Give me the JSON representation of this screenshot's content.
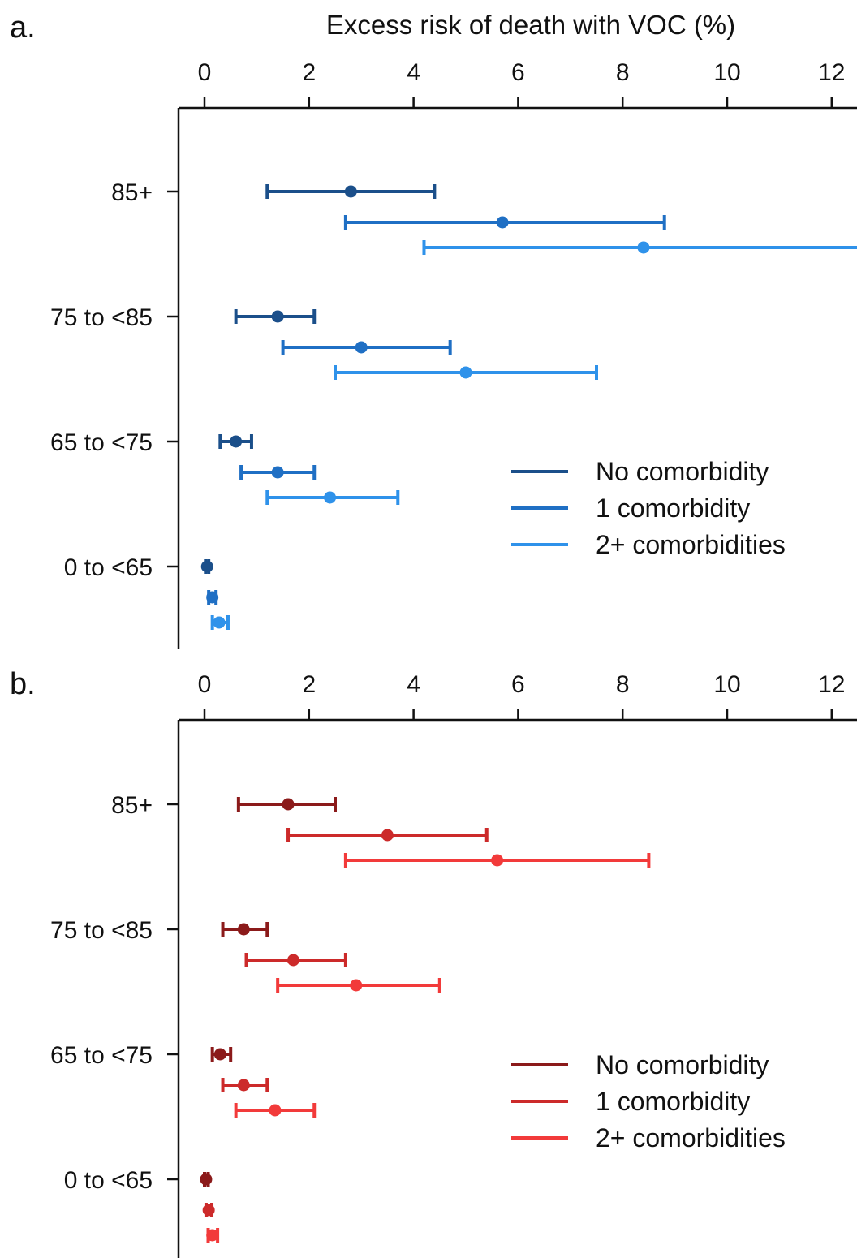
{
  "chart_data": [
    {
      "type": "errorbar",
      "panel_label": "a.",
      "title": "Excess risk of death with VOC (%)",
      "x_ticks": [
        0,
        2,
        4,
        6,
        8,
        10,
        12
      ],
      "xlim": [
        0,
        12.5
      ],
      "categories": [
        "85+",
        "75 to <85",
        "65 to <75",
        "0 to <65"
      ],
      "legend_position": "right",
      "series": [
        {
          "name": "No comorbidity",
          "color": "#1b4f8a",
          "values": [
            {
              "category": "85+",
              "x": 2.8,
              "lo": 1.2,
              "hi": 4.4
            },
            {
              "category": "75 to <85",
              "x": 1.4,
              "lo": 0.6,
              "hi": 2.1
            },
            {
              "category": "65 to <75",
              "x": 0.6,
              "lo": 0.3,
              "hi": 0.9
            },
            {
              "category": "0 to <65",
              "x": 0.05,
              "lo": 0.02,
              "hi": 0.08
            }
          ]
        },
        {
          "name": "1 comorbidity",
          "color": "#1f6fc4",
          "values": [
            {
              "category": "85+",
              "x": 5.7,
              "lo": 2.7,
              "hi": 8.8
            },
            {
              "category": "75 to <85",
              "x": 3.0,
              "lo": 1.5,
              "hi": 4.7
            },
            {
              "category": "65 to <75",
              "x": 1.4,
              "lo": 0.7,
              "hi": 2.1
            },
            {
              "category": "0 to <65",
              "x": 0.15,
              "lo": 0.08,
              "hi": 0.22
            }
          ]
        },
        {
          "name": "2+ comorbidities",
          "color": "#2f92ea",
          "values": [
            {
              "category": "85+",
              "x": 8.4,
              "lo": 4.2,
              "hi": 12.8
            },
            {
              "category": "75 to <85",
              "x": 5.0,
              "lo": 2.5,
              "hi": 7.5
            },
            {
              "category": "65 to <75",
              "x": 2.4,
              "lo": 1.2,
              "hi": 3.7
            },
            {
              "category": "0 to <65",
              "x": 0.28,
              "lo": 0.15,
              "hi": 0.45
            }
          ]
        }
      ]
    },
    {
      "type": "errorbar",
      "panel_label": "b.",
      "title": "",
      "x_ticks": [
        0,
        2,
        4,
        6,
        8,
        10,
        12
      ],
      "xlim": [
        0,
        12.5
      ],
      "categories": [
        "85+",
        "75 to <85",
        "65 to <75",
        "0 to <65"
      ],
      "legend_position": "right",
      "series": [
        {
          "name": "No comorbidity",
          "color": "#8b1a1a",
          "values": [
            {
              "category": "85+",
              "x": 1.6,
              "lo": 0.65,
              "hi": 2.5
            },
            {
              "category": "75 to <85",
              "x": 0.75,
              "lo": 0.35,
              "hi": 1.2
            },
            {
              "category": "65 to <75",
              "x": 0.3,
              "lo": 0.15,
              "hi": 0.5
            },
            {
              "category": "0 to <65",
              "x": 0.03,
              "lo": 0.0,
              "hi": 0.07
            }
          ]
        },
        {
          "name": "1 comorbidity",
          "color": "#cc2a2a",
          "values": [
            {
              "category": "85+",
              "x": 3.5,
              "lo": 1.6,
              "hi": 5.4
            },
            {
              "category": "75 to <85",
              "x": 1.7,
              "lo": 0.8,
              "hi": 2.7
            },
            {
              "category": "65 to <75",
              "x": 0.75,
              "lo": 0.35,
              "hi": 1.2
            },
            {
              "category": "0 to <65",
              "x": 0.08,
              "lo": 0.03,
              "hi": 0.14
            }
          ]
        },
        {
          "name": "2+ comorbidities",
          "color": "#f23a3a",
          "values": [
            {
              "category": "85+",
              "x": 5.6,
              "lo": 2.7,
              "hi": 8.5
            },
            {
              "category": "75 to <85",
              "x": 2.9,
              "lo": 1.4,
              "hi": 4.5
            },
            {
              "category": "65 to <75",
              "x": 1.35,
              "lo": 0.6,
              "hi": 2.1
            },
            {
              "category": "0 to <65",
              "x": 0.15,
              "lo": 0.07,
              "hi": 0.25
            }
          ]
        }
      ]
    }
  ]
}
